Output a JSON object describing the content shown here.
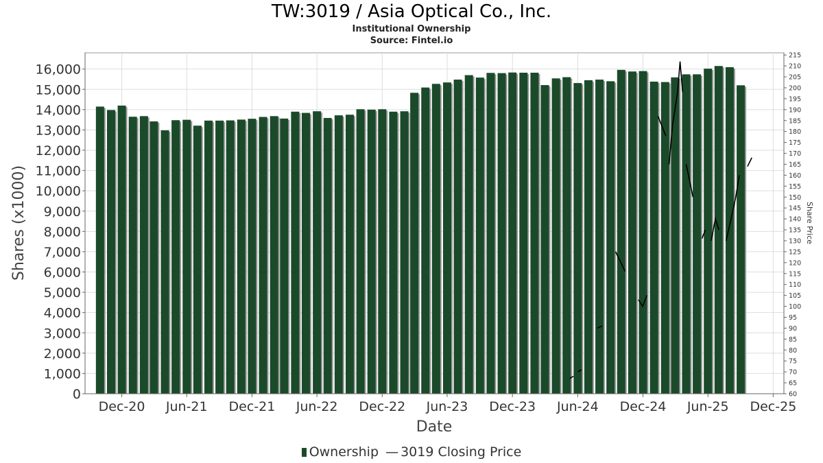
{
  "chart_data": {
    "type": "bar",
    "title": "TW:3019 / Asia Optical Co., Inc.",
    "subtitle": "Institutional Ownership",
    "source": "Source: Fintel.io",
    "xlabel": "Date",
    "ylabel": "Shares (x1000)",
    "y2label": "Share Price",
    "ylim": [
      0,
      16800
    ],
    "y2lim": [
      60,
      216
    ],
    "xlim": [
      "2020-08-20",
      "2025-12-31"
    ],
    "yticks": [
      0,
      1000,
      2000,
      3000,
      4000,
      5000,
      6000,
      7000,
      8000,
      9000,
      10000,
      11000,
      12000,
      13000,
      14000,
      15000,
      16000
    ],
    "yticklabels": [
      "0",
      "1,000",
      "2,000",
      "3,000",
      "4,000",
      "5,000",
      "6,000",
      "7,000",
      "8,000",
      "9,000",
      "10,000",
      "11,000",
      "12,000",
      "13,000",
      "14,000",
      "15,000",
      "16,000"
    ],
    "y2ticks": [
      60,
      65,
      70,
      75,
      80,
      85,
      90,
      95,
      100,
      105,
      110,
      115,
      120,
      125,
      130,
      135,
      140,
      145,
      150,
      155,
      160,
      165,
      170,
      175,
      180,
      185,
      190,
      195,
      200,
      205,
      210,
      215
    ],
    "xticks": [
      {
        "label": "Dec-20",
        "date": "2020-12-01"
      },
      {
        "label": "Jun-21",
        "date": "2021-06-01"
      },
      {
        "label": "Dec-21",
        "date": "2021-12-01"
      },
      {
        "label": "Jun-22",
        "date": "2022-06-01"
      },
      {
        "label": "Dec-22",
        "date": "2022-12-01"
      },
      {
        "label": "Jun-23",
        "date": "2023-06-01"
      },
      {
        "label": "Dec-23",
        "date": "2023-12-01"
      },
      {
        "label": "Jun-24",
        "date": "2024-06-01"
      },
      {
        "label": "Dec-24",
        "date": "2024-12-01"
      },
      {
        "label": "Jun-25",
        "date": "2025-06-01"
      },
      {
        "label": "Dec-25",
        "date": "2025-12-01"
      }
    ],
    "grid": true,
    "legend_position": "bottom",
    "colors": {
      "bar": "#1b4a2a",
      "bar_shadow": "#9a9a9a",
      "line": "#000000",
      "grid": "#dddddd"
    },
    "series": [
      {
        "name": "Ownership",
        "type": "bar",
        "x": [
          "2020-10-01",
          "2020-11-01",
          "2020-12-01",
          "2021-01-01",
          "2021-02-01",
          "2021-03-01",
          "2021-04-01",
          "2021-05-01",
          "2021-06-01",
          "2021-07-01",
          "2021-08-01",
          "2021-09-01",
          "2021-10-01",
          "2021-11-01",
          "2021-12-01",
          "2022-01-01",
          "2022-02-01",
          "2022-03-01",
          "2022-04-01",
          "2022-05-01",
          "2022-06-01",
          "2022-07-01",
          "2022-08-01",
          "2022-09-01",
          "2022-10-01",
          "2022-11-01",
          "2022-12-01",
          "2023-01-01",
          "2023-02-01",
          "2023-03-01",
          "2023-04-01",
          "2023-05-01",
          "2023-06-01",
          "2023-07-01",
          "2023-08-01",
          "2023-09-01",
          "2023-10-01",
          "2023-11-01",
          "2023-12-01",
          "2024-01-01",
          "2024-02-01",
          "2024-03-01",
          "2024-04-01",
          "2024-05-01",
          "2024-06-01",
          "2024-07-01",
          "2024-08-01",
          "2024-09-01",
          "2024-10-01",
          "2024-11-01",
          "2024-12-01",
          "2025-01-01",
          "2025-02-01",
          "2025-03-01",
          "2025-04-01",
          "2025-05-01",
          "2025-06-01",
          "2025-07-01",
          "2025-08-01",
          "2025-09-01"
        ],
        "values": [
          14150,
          13980,
          14200,
          13650,
          13680,
          13420,
          12980,
          13480,
          13500,
          13210,
          13460,
          13460,
          13470,
          13510,
          13550,
          13640,
          13680,
          13560,
          13900,
          13840,
          13920,
          13590,
          13720,
          13750,
          14020,
          14000,
          14020,
          13900,
          13920,
          14830,
          15090,
          15270,
          15340,
          15480,
          15700,
          15580,
          15810,
          15800,
          15830,
          15820,
          15820,
          15210,
          15540,
          15600,
          15310,
          15450,
          15480,
          15400,
          15960,
          15880,
          15900,
          15380,
          15360,
          15590,
          15740,
          15740,
          16020,
          16150,
          16090,
          15200
        ]
      },
      {
        "name": "3019 Closing Price",
        "type": "line",
        "segments": [
          [
            [
              "2024-05-10",
              67
            ],
            [
              "2024-05-20",
              68
            ]
          ],
          [
            [
              "2024-06-01",
              70
            ],
            [
              "2024-06-12",
              71
            ]
          ],
          [
            [
              "2024-07-26",
              90
            ],
            [
              "2024-08-08",
              91
            ]
          ],
          [
            [
              "2024-09-15",
              125
            ],
            [
              "2024-10-12",
              116
            ]
          ],
          [
            [
              "2024-11-18",
              103
            ],
            [
              "2024-11-30",
              100
            ],
            [
              "2024-12-12",
              105
            ]
          ],
          [
            [
              "2025-01-12",
              187
            ],
            [
              "2025-02-03",
              178
            ]
          ],
          [
            [
              "2025-02-12",
              165
            ],
            [
              "2025-02-22",
              183
            ],
            [
              "2025-03-08",
              198
            ],
            [
              "2025-03-15",
              212
            ],
            [
              "2025-03-22",
              198
            ]
          ],
          [
            [
              "2025-04-01",
              165
            ],
            [
              "2025-04-10",
              158
            ],
            [
              "2025-04-20",
              150
            ]
          ],
          [
            [
              "2025-05-15",
              131
            ],
            [
              "2025-05-25",
              135
            ]
          ],
          [
            [
              "2025-06-10",
              130
            ],
            [
              "2025-06-22",
              140
            ],
            [
              "2025-07-02",
              135
            ]
          ],
          [
            [
              "2025-07-22",
              130
            ],
            [
              "2025-08-05",
              140
            ],
            [
              "2025-08-18",
              150
            ],
            [
              "2025-08-28",
              160
            ]
          ],
          [
            [
              "2025-09-20",
              164
            ],
            [
              "2025-10-02",
              168
            ]
          ]
        ]
      }
    ]
  }
}
